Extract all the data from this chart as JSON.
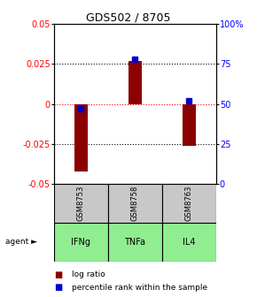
{
  "title": "GDS502 / 8705",
  "samples": [
    "GSM8753",
    "GSM8758",
    "GSM8763"
  ],
  "agents": [
    "IFNg",
    "TNFa",
    "IL4"
  ],
  "log_ratios": [
    -0.042,
    0.027,
    -0.026
  ],
  "percentile_ranks": [
    47,
    78,
    52
  ],
  "ylim_left": [
    -0.05,
    0.05
  ],
  "ylim_right": [
    0,
    100
  ],
  "yticks_left": [
    -0.05,
    -0.025,
    0,
    0.025,
    0.05
  ],
  "yticks_right": [
    0,
    25,
    50,
    75,
    100
  ],
  "ytick_labels_left": [
    "-0.05",
    "-0.025",
    "0",
    "0.025",
    "0.05"
  ],
  "ytick_labels_right": [
    "0",
    "25",
    "50",
    "75",
    "100%"
  ],
  "bar_color": "#8B0000",
  "dot_color": "#0000CD",
  "sample_bg": "#C8C8C8",
  "agent_bg_color": "#90EE90",
  "zero_line_color": "#FF0000",
  "bar_width": 0.25
}
